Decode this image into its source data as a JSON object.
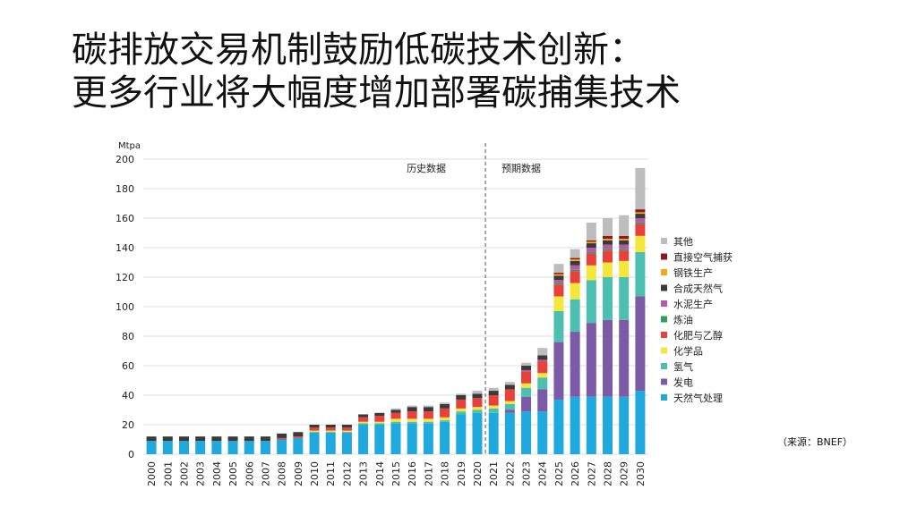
{
  "slide": {
    "title_line1": "碳排放交易机制鼓励低碳技术创新：",
    "title_line2": "更多行业将大幅度增加部署碳捕集技术",
    "source_note": "（来源：BNEF）"
  },
  "chart_data": {
    "type": "bar",
    "stacked": true,
    "ylabel": "Mtpa",
    "ylim": [
      0,
      200
    ],
    "yticks": [
      0,
      20,
      40,
      60,
      80,
      100,
      120,
      140,
      160,
      180,
      200
    ],
    "grid": true,
    "legend_position": "right",
    "annotations": {
      "historical": "历史数据",
      "forecast": "预期数据",
      "divider_after": "2020"
    },
    "categories": [
      "2000",
      "2001",
      "2002",
      "2003",
      "2004",
      "2005",
      "2006",
      "2007",
      "2008",
      "2009",
      "2010",
      "2011",
      "2012",
      "2013",
      "2014",
      "2015",
      "2016",
      "2017",
      "2018",
      "2019",
      "2020",
      "2021",
      "2022",
      "2023",
      "2024",
      "2025",
      "2026",
      "2027",
      "2028",
      "2029",
      "2030"
    ],
    "series": [
      {
        "name": "天然气处理",
        "color": "#1fa9dc",
        "values": [
          9,
          9,
          9,
          9,
          9,
          9,
          9,
          9,
          10,
          11,
          15,
          15,
          15,
          20,
          20,
          21,
          21,
          21,
          22,
          27,
          28,
          28,
          28,
          29,
          29,
          37,
          39,
          39,
          39,
          39,
          43
        ]
      },
      {
        "name": "发电",
        "color": "#7d5aa6",
        "values": [
          0,
          0,
          0,
          0,
          0,
          0,
          0,
          0,
          0,
          0,
          0,
          0,
          0,
          0,
          0,
          0,
          0,
          0,
          0,
          0,
          0,
          0,
          2,
          10,
          15,
          39,
          44,
          50,
          52,
          52,
          64
        ]
      },
      {
        "name": "氢气",
        "color": "#4dbfb0",
        "values": [
          0,
          0,
          0,
          0,
          0,
          0,
          0,
          0,
          0,
          0,
          0,
          0,
          0,
          1,
          1,
          1,
          1,
          1,
          1,
          2,
          2,
          3,
          4,
          6,
          8,
          21,
          22,
          29,
          29,
          29,
          30
        ]
      },
      {
        "name": "化学品",
        "color": "#f5e63c",
        "values": [
          0,
          0,
          0,
          0,
          0,
          0,
          0,
          0,
          0,
          0,
          1,
          1,
          1,
          1,
          1,
          2,
          2,
          2,
          2,
          2,
          2,
          2,
          2,
          3,
          3,
          10,
          11,
          10,
          10,
          11,
          11
        ]
      },
      {
        "name": "化肥与乙醇",
        "color": "#e8403a",
        "values": [
          0,
          0,
          0,
          0,
          0,
          0,
          0,
          0,
          1,
          1,
          2,
          2,
          2,
          3,
          4,
          4,
          5,
          5,
          6,
          6,
          6,
          7,
          8,
          8,
          8,
          8,
          8,
          8,
          8,
          7,
          8
        ]
      },
      {
        "name": "炼油",
        "color": "#2e9e58",
        "values": [
          0,
          0,
          0,
          0,
          0,
          0,
          0,
          0,
          0,
          0,
          0,
          0,
          0,
          0,
          0,
          0,
          0,
          0,
          0,
          0,
          0,
          0,
          0,
          0,
          0,
          1,
          1,
          1,
          1,
          1,
          1
        ]
      },
      {
        "name": "水泥生产",
        "color": "#b55aa8",
        "values": [
          0,
          0,
          0,
          0,
          0,
          0,
          0,
          0,
          0,
          0,
          0,
          0,
          0,
          0,
          0,
          0,
          0,
          0,
          0,
          0,
          0,
          0,
          0,
          1,
          1,
          2,
          3,
          3,
          3,
          3,
          3
        ]
      },
      {
        "name": "合成天然气",
        "color": "#3a3a3a",
        "values": [
          3,
          3,
          3,
          3,
          3,
          3,
          3,
          3,
          3,
          3,
          2,
          2,
          2,
          2,
          2,
          2,
          3,
          3,
          3,
          3,
          3,
          3,
          3,
          3,
          3,
          3,
          3,
          3,
          3,
          3,
          3
        ]
      },
      {
        "name": "钢铁生产",
        "color": "#f2a818",
        "values": [
          0,
          0,
          0,
          0,
          0,
          0,
          0,
          0,
          0,
          0,
          0,
          0,
          0,
          0,
          0,
          0,
          0,
          0,
          0,
          0,
          0,
          0,
          0,
          0,
          0,
          1,
          1,
          1,
          1,
          1,
          1
        ]
      },
      {
        "name": "直接空气捕获",
        "color": "#8c1a1a",
        "values": [
          0,
          0,
          0,
          0,
          0,
          0,
          0,
          0,
          0,
          0,
          0,
          0,
          0,
          0,
          0,
          0,
          0,
          0,
          0,
          0,
          0,
          0,
          0,
          0,
          0,
          1,
          1,
          1,
          2,
          2,
          2
        ]
      },
      {
        "name": "其他",
        "color": "#bdbdbd",
        "values": [
          0,
          0,
          0,
          0,
          0,
          0,
          0,
          0,
          0,
          0,
          0,
          0,
          0,
          0,
          0,
          1,
          1,
          1,
          1,
          1,
          2,
          2,
          2,
          2,
          5,
          6,
          6,
          12,
          12,
          14,
          28
        ]
      }
    ]
  }
}
